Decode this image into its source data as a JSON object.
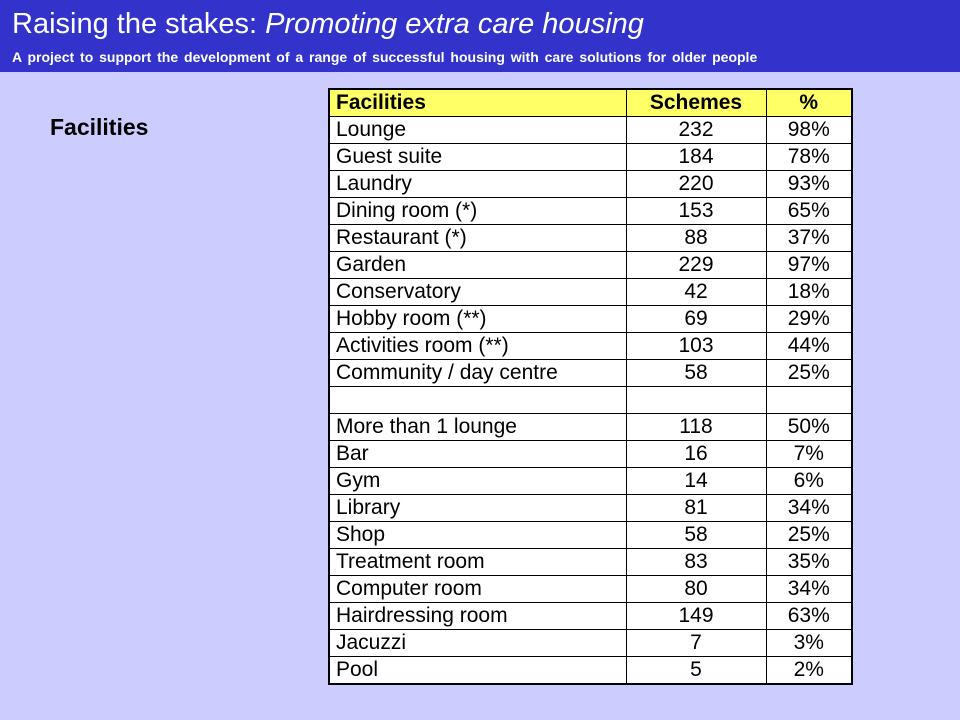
{
  "header": {
    "title_plain": "Raising the stakes: ",
    "title_italic": "Promoting extra care housing",
    "subtitle": "A project to support the development of a range of successful housing with care solutions for older people"
  },
  "section_heading": "Facilities",
  "table": {
    "columns": [
      "Facilities",
      "Schemes",
      "%"
    ],
    "rows": [
      [
        "Lounge",
        "232",
        "98%"
      ],
      [
        "Guest suite",
        "184",
        "78%"
      ],
      [
        "Laundry",
        "220",
        "93%"
      ],
      [
        "Dining room (*)",
        "153",
        "65%"
      ],
      [
        "Restaurant (*)",
        "88",
        "37%"
      ],
      [
        "Garden",
        "229",
        "97%"
      ],
      [
        "Conservatory",
        "42",
        "18%"
      ],
      [
        "Hobby room (**)",
        "69",
        "29%"
      ],
      [
        "Activities room (**)",
        "103",
        "44%"
      ],
      [
        "Community / day centre",
        "58",
        "25%"
      ],
      [
        "",
        "",
        ""
      ],
      [
        "More than 1 lounge",
        "118",
        "50%"
      ],
      [
        "Bar",
        "16",
        "7%"
      ],
      [
        "Gym",
        "14",
        "6%"
      ],
      [
        "Library",
        "81",
        "34%"
      ],
      [
        "Shop",
        "58",
        "25%"
      ],
      [
        "Treatment room",
        "83",
        "35%"
      ],
      [
        "Computer room",
        "80",
        "34%"
      ],
      [
        "Hairdressing room",
        "149",
        "63%"
      ],
      [
        "Jacuzzi",
        "7",
        "3%"
      ],
      [
        "Pool",
        "5",
        "2%"
      ]
    ]
  },
  "colors": {
    "background": "#ccccff",
    "banner": "#3333cc",
    "header_row": "#ffff66",
    "table_body": "#ffffff"
  }
}
